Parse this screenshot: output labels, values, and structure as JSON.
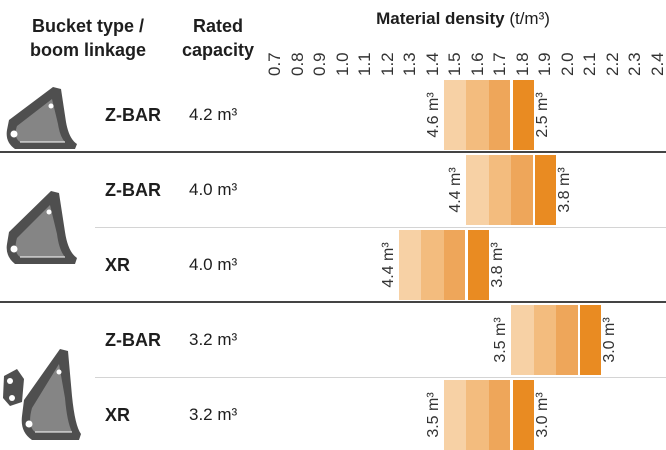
{
  "header": {
    "bucket_type_line1": "Bucket type /",
    "bucket_type_line2": "boom linkage",
    "capacity_line1": "Rated",
    "capacity_line2": "capacity"
  },
  "icons": [
    "bucket-icon",
    "bucket-icon",
    "bucket-with-coupler-icon"
  ],
  "colors": {
    "band": [
      "#f7d1a5",
      "#f3bc7e",
      "#eea65a",
      "#e98b22"
    ],
    "marker": "#ffffff"
  },
  "chart_data": {
    "type": "table",
    "xlabel": "Material density",
    "xlabel_unit": "(t/m³)",
    "x_ticks": [
      "0.7",
      "0.8",
      "0.9",
      "1.0",
      "1.1",
      "1.2",
      "1.3",
      "1.4",
      "1.5",
      "1.6",
      "1.7",
      "1.8",
      "1.9",
      "2.0",
      "2.1",
      "2.2",
      "2.3",
      "2.4"
    ],
    "xlim": [
      0.7,
      2.4
    ],
    "rows": [
      {
        "linkage": "Z-BAR",
        "capacity": "4.2 m³",
        "density_from": 1.5,
        "density_to": 1.8,
        "marker": 1.75,
        "label_left": "4.6 m³",
        "label_right": "2.5 m³"
      },
      {
        "linkage": "Z-BAR",
        "capacity": "4.0 m³",
        "density_from": 1.6,
        "density_to": 1.9,
        "marker": 1.85,
        "label_left": "4.4 m³",
        "label_right": "3.8 m³"
      },
      {
        "linkage": "XR",
        "capacity": "4.0 m³",
        "density_from": 1.3,
        "density_to": 1.6,
        "marker": 1.55,
        "label_left": "4.4 m³",
        "label_right": "3.8 m³"
      },
      {
        "linkage": "Z-BAR",
        "capacity": "3.2 m³",
        "density_from": 1.8,
        "density_to": 2.1,
        "marker": 2.05,
        "label_left": "3.5 m³",
        "label_right": "3.0 m³"
      },
      {
        "linkage": "XR",
        "capacity": "3.2 m³",
        "density_from": 1.5,
        "density_to": 1.8,
        "marker": 1.75,
        "label_left": "3.5 m³",
        "label_right": "3.0 m³"
      }
    ]
  }
}
